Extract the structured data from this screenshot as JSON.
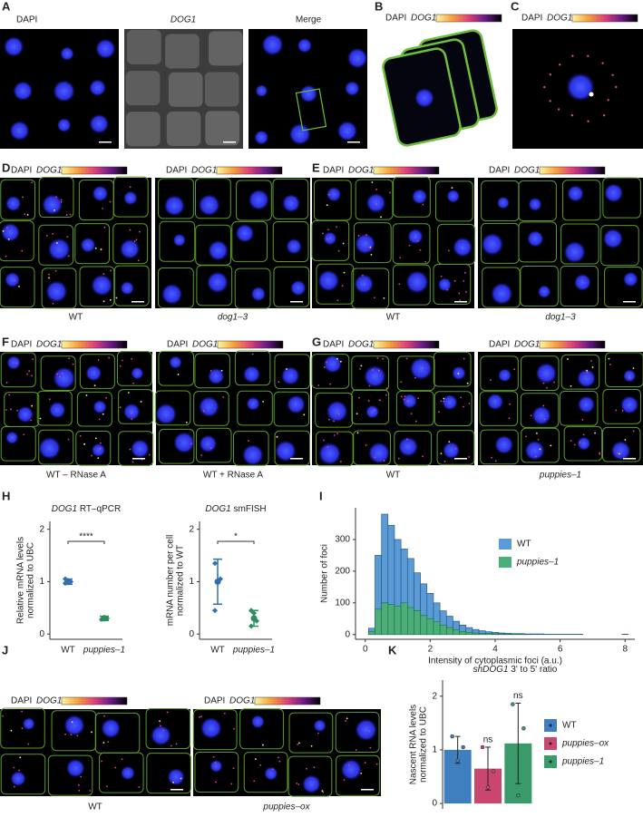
{
  "figure": {
    "letters": [
      "A",
      "B",
      "C",
      "D",
      "E",
      "F",
      "G",
      "H",
      "I",
      "J",
      "K"
    ],
    "dapi": "DAPI",
    "dog1": "DOG1",
    "merge": "Merge",
    "captions": {
      "D": [
        "WT",
        "dog1–3"
      ],
      "E": [
        "WT",
        "dog1–3"
      ],
      "F": [
        "WT – RNase A",
        "WT + RNase A"
      ],
      "G": [
        "WT",
        "puppies–1"
      ],
      "J": [
        "WT",
        "puppies–ox"
      ]
    }
  },
  "chart_data": [
    {
      "type": "dot",
      "title_gene": "DOG1",
      "title": "RT–qPCR",
      "ylabel": [
        "Relative mRNA levels",
        "normalized to UBC"
      ],
      "categories": [
        "WT",
        "puppies–1"
      ],
      "values": [
        1.0,
        0.3
      ],
      "errors": [
        0.05,
        0.04
      ],
      "points": [
        [
          0.97,
          1.02,
          1.0,
          1.05,
          0.98
        ],
        [
          0.28,
          0.32,
          0.3
        ]
      ],
      "colors": [
        "#2f6fb0",
        "#2a8f5c"
      ],
      "ylim": [
        -0.1,
        2.15
      ],
      "yticks": [
        0,
        1,
        2
      ],
      "significance": "****"
    },
    {
      "type": "dot",
      "title_gene": "DOG1",
      "title": "smFISH",
      "ylabel": [
        "mRNA number per cell",
        "normalized to WT"
      ],
      "categories": [
        "WT",
        "puppies–1"
      ],
      "values": [
        1.0,
        0.3
      ],
      "errors": [
        0.43,
        0.15
      ],
      "points": [
        [
          1.35,
          1.0,
          1.05,
          0.45,
          0.98
        ],
        [
          0.45,
          0.4,
          0.25,
          0.15,
          0.3
        ]
      ],
      "colors": [
        "#2f6fb0",
        "#2a8f5c"
      ],
      "ylim": [
        -0.1,
        2.15
      ],
      "yticks": [
        0,
        1,
        2
      ],
      "significance": "*"
    },
    {
      "type": "histogram",
      "xlabel": "Intensity of cytoplasmic foci (a.u.)",
      "ylabel": "Number of foci",
      "bins": [
        0.1,
        0.3,
        0.5,
        0.7,
        0.9,
        1.1,
        1.3,
        1.5,
        1.7,
        1.9,
        2.1,
        2.3,
        2.5,
        2.7,
        2.9,
        3.1,
        3.3,
        3.5,
        3.7,
        3.9,
        4.1,
        4.3,
        4.5,
        4.7,
        4.9,
        5.1,
        5.3,
        5.5,
        5.7,
        5.9,
        6.1,
        6.3,
        6.5,
        6.7,
        6.9,
        7.1,
        7.3,
        7.5,
        7.7,
        7.9,
        8.1
      ],
      "series": [
        {
          "name": "WT",
          "color": "#5b9bd5",
          "values": [
            20,
            250,
            380,
            345,
            300,
            270,
            240,
            195,
            160,
            130,
            100,
            75,
            58,
            42,
            30,
            22,
            16,
            12,
            9,
            7,
            5,
            4,
            3,
            3,
            2,
            2,
            2,
            1,
            1,
            1,
            1,
            1,
            1,
            0,
            0,
            0,
            0,
            0,
            0,
            1
          ]
        },
        {
          "name": "puppies–1",
          "color": "#4caf7a",
          "values": [
            10,
            80,
            100,
            95,
            90,
            100,
            85,
            75,
            60,
            50,
            40,
            30,
            22,
            15,
            10,
            7,
            5,
            4,
            3,
            2,
            2,
            1,
            1,
            1,
            1,
            0,
            0,
            0,
            0,
            0,
            0,
            0,
            0,
            0,
            0,
            0,
            0,
            0,
            0,
            0
          ]
        }
      ],
      "xlim": [
        -0.3,
        8.3
      ],
      "ylim": [
        -15,
        400
      ],
      "xticks": [
        0,
        2,
        4,
        6,
        8
      ],
      "yticks": [
        0,
        100,
        200,
        300
      ],
      "legend": "right"
    },
    {
      "type": "bar",
      "title_gene": "shDOG1",
      "title": "3' to 5' ratio",
      "ylabel": [
        "Nascent RNA levels",
        "normalized to UBC"
      ],
      "series": [
        {
          "name": "WT",
          "color": "#3f7fbf",
          "values": [
            1.0
          ],
          "errors": [
            0.25
          ],
          "points": [
            1.25,
            0.8,
            1.05
          ]
        },
        {
          "name": "puppies–ox",
          "color": "#c9466f",
          "values": [
            0.65
          ],
          "errors": [
            0.4
          ],
          "points": [
            1.05,
            0.3,
            0.6
          ],
          "annotation": "ns"
        },
        {
          "name": "puppies–1",
          "color": "#3a9a6a",
          "values": [
            1.12
          ],
          "errors": [
            0.75
          ],
          "points": [
            1.85,
            0.15,
            1.4
          ],
          "annotation": "ns"
        }
      ],
      "ylim": [
        -0.1,
        2.3
      ],
      "yticks": [
        0,
        1,
        2
      ],
      "legend": "right"
    }
  ]
}
